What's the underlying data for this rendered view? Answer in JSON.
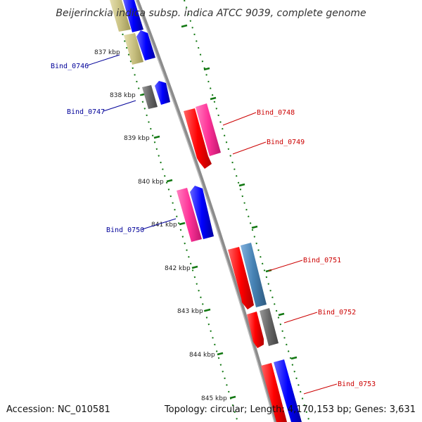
{
  "title": "Beijerinckia indica subsp. indica ATCC 9039, complete genome",
  "ticks": [
    "837 kbp",
    "838 kbp",
    "839 kbp",
    "840 kbp",
    "841 kbp",
    "842 kbp",
    "843 kbp",
    "844 kbp",
    "845 kbp"
  ],
  "gene_labels": {
    "left": [
      "Bind_0746",
      "Bind_0747",
      "Bind_0750"
    ],
    "right": [
      "Bind_0748",
      "Bind_0749",
      "Bind_0751",
      "Bind_0752",
      "Bind_0753"
    ]
  },
  "colors": {
    "left_label": "#000099",
    "right_label": "#cc0000",
    "backbone": "#808080",
    "tick": "#117711",
    "red_gene": "#ff0000",
    "pink_gene": "#ff3399",
    "blue_gene": "#0000ff",
    "grey_gene": "#666666",
    "khaki_gene": "#c8c080",
    "steel_gene": "#4682b4"
  },
  "footer": {
    "accession": "Accession: NC_010581",
    "topology": "Topology: circular; Length: 4,170,153 bp; Genes: 3,631"
  }
}
